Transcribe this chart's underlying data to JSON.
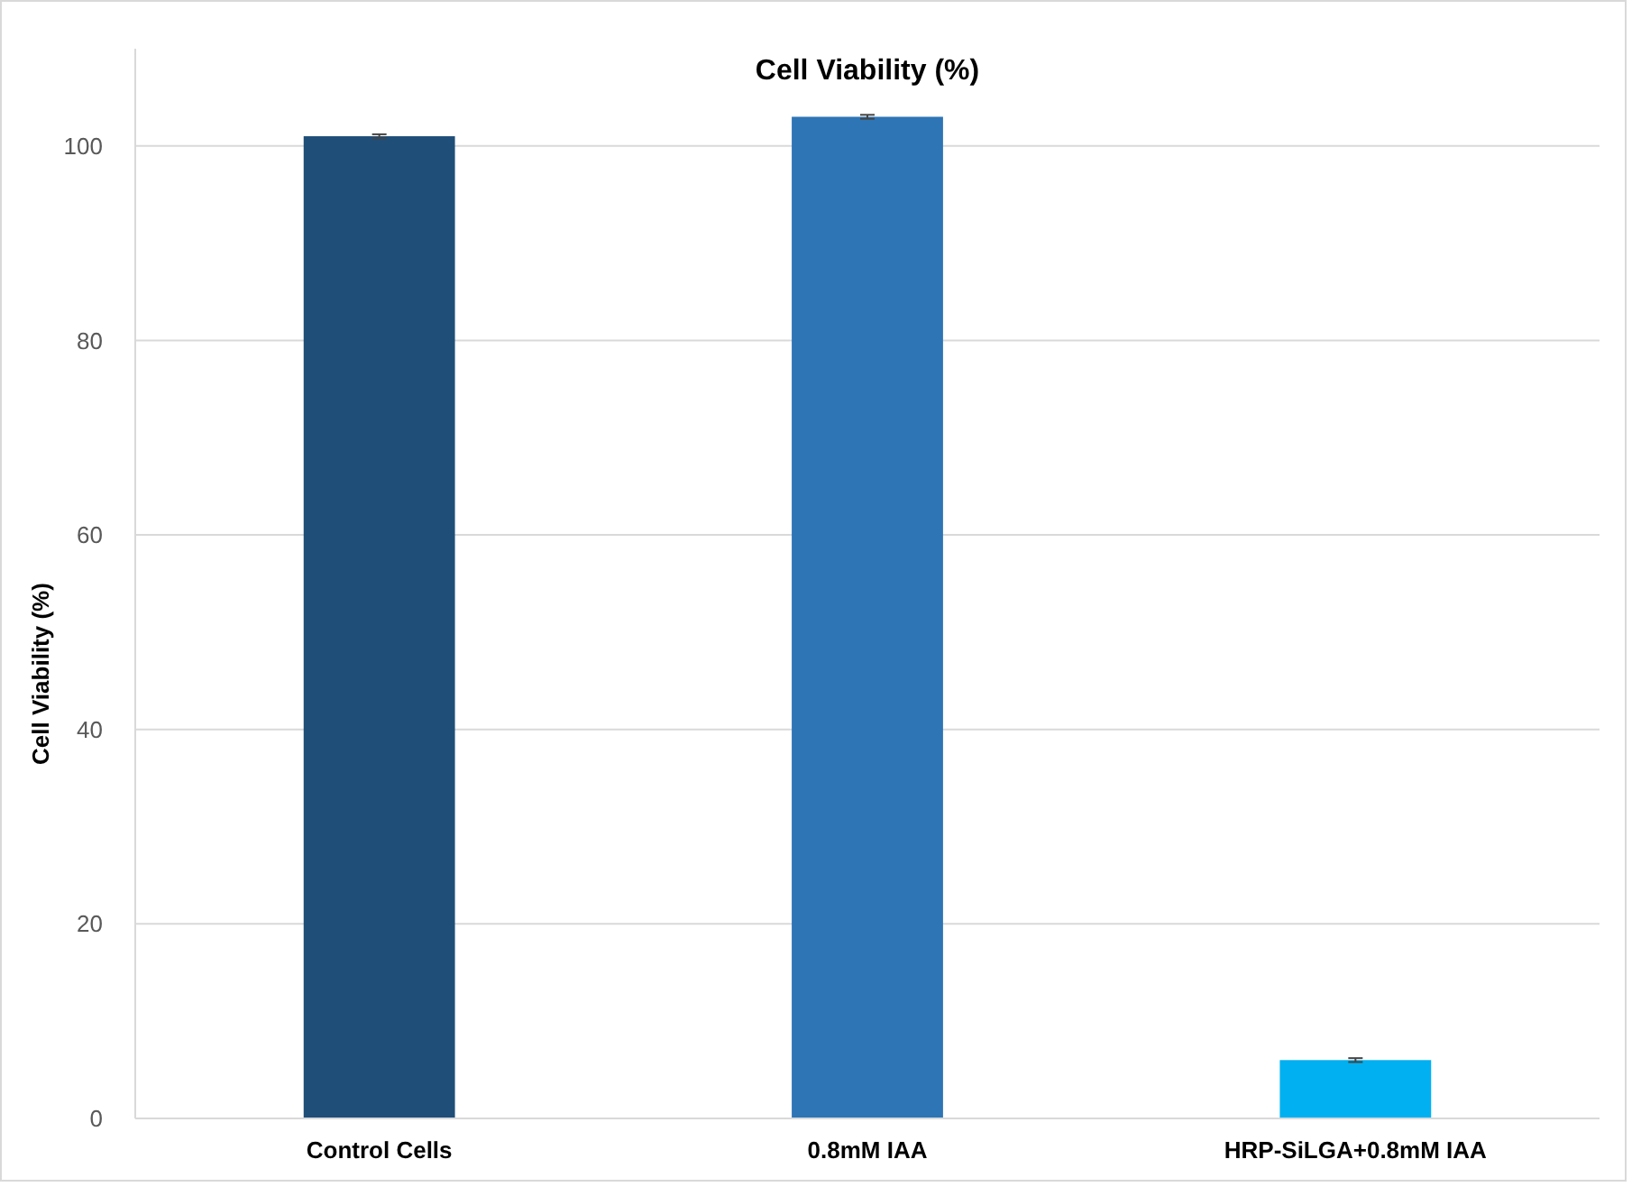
{
  "chart_data": {
    "type": "bar",
    "title": "Cell Viability (%)",
    "ylabel": "Cell Viability (%)",
    "categories": [
      "Control Cells",
      "0.8mM IAA",
      "HRP-SiLGA+0.8mM IAA"
    ],
    "values": [
      101,
      103,
      6
    ],
    "colors": [
      "#1f4e79",
      "#2e75b6",
      "#00b0f0"
    ],
    "errors": [
      0.2,
      0.2,
      0.2
    ],
    "ylim": [
      0,
      110
    ],
    "yticks": [
      0,
      20,
      40,
      60,
      80,
      100
    ],
    "grid": "y"
  }
}
